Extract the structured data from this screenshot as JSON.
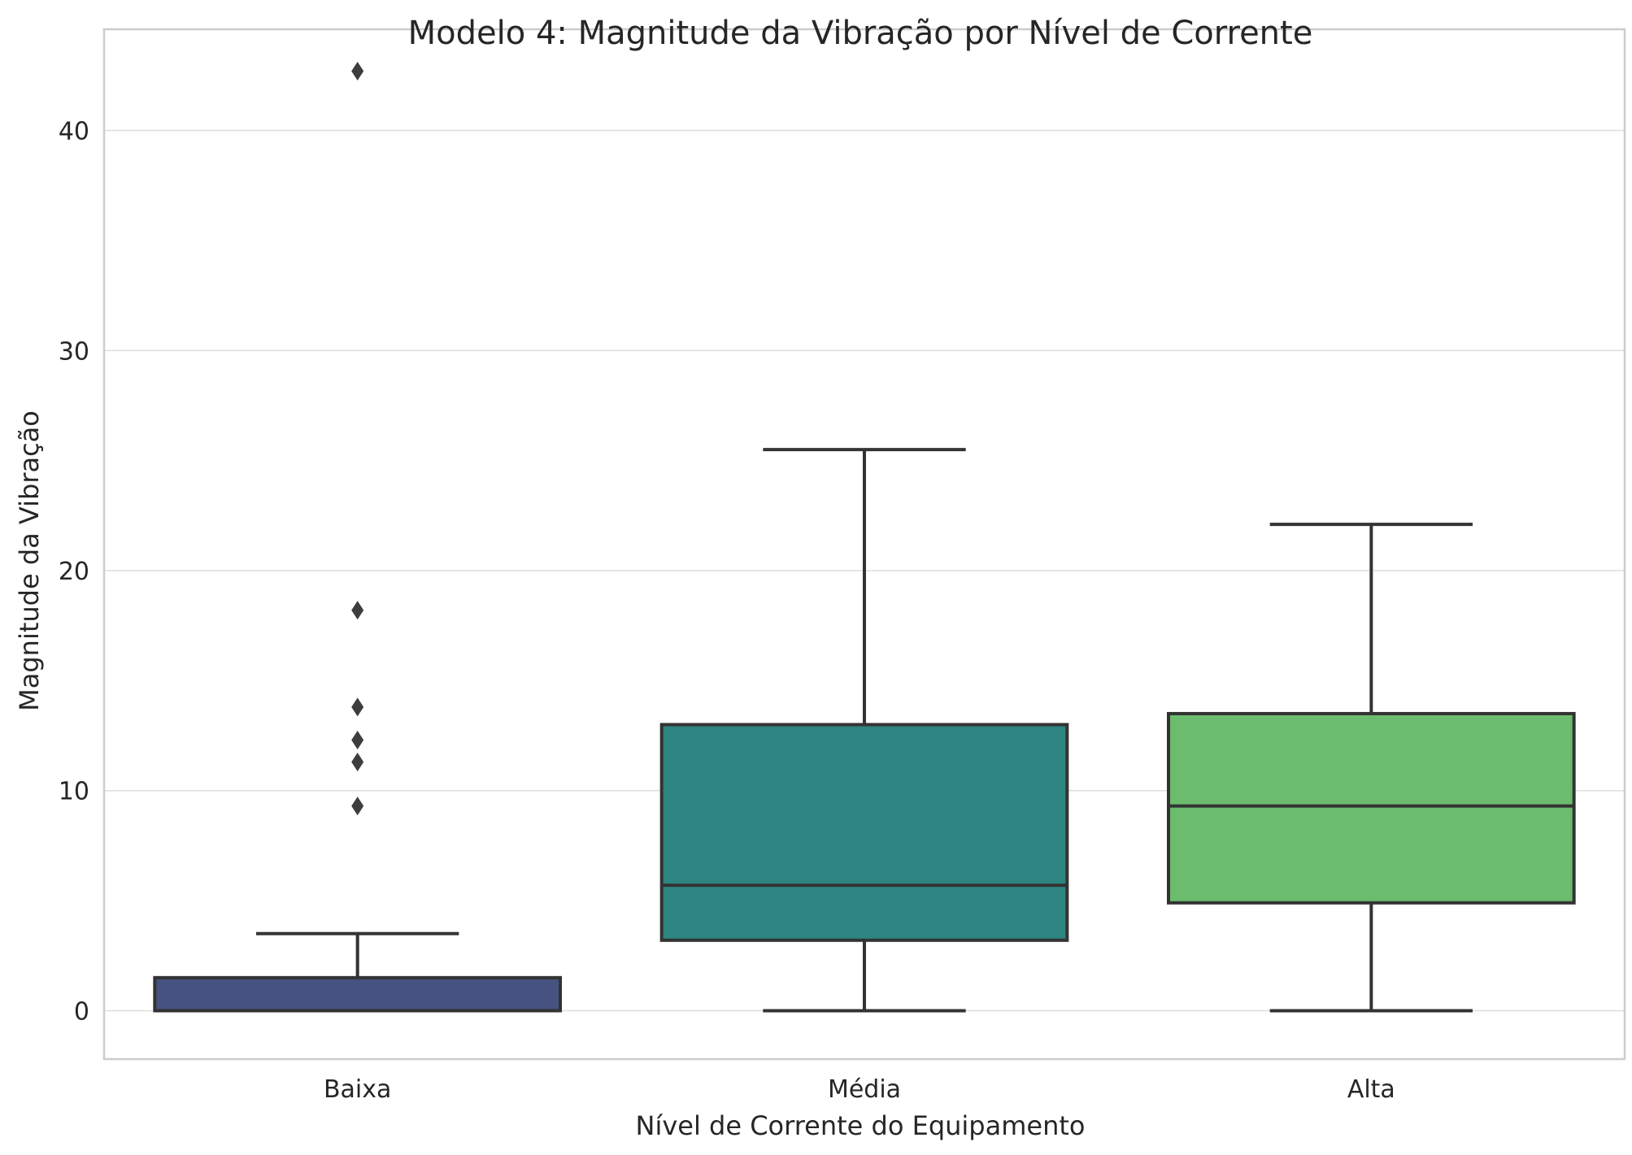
{
  "chart_data": {
    "type": "box",
    "title": "Modelo 4: Magnitude da Vibração por Nível de Corrente",
    "xlabel": "Nível de Corrente do Equipamento",
    "ylabel": "Magnitude da Vibração",
    "ylim": [
      -2.2,
      44.6
    ],
    "yticks": [
      0,
      10,
      20,
      30,
      40
    ],
    "grid": "horizontal",
    "categories": [
      "Baixa",
      "Média",
      "Alta"
    ],
    "boxes": [
      {
        "category": "Baixa",
        "color": "#46527f",
        "whisker_low": 0,
        "q1": 0,
        "median": 0,
        "q3": 1.5,
        "whisker_high": 3.5,
        "outliers": [
          9.3,
          11.3,
          12.3,
          13.8,
          18.2,
          42.7
        ]
      },
      {
        "category": "Média",
        "color": "#2e8581",
        "whisker_low": 0,
        "q1": 3.2,
        "median": 5.7,
        "q3": 13.0,
        "whisker_high": 25.5,
        "outliers": []
      },
      {
        "category": "Alta",
        "color": "#6bbc6d",
        "whisker_low": 0,
        "q1": 4.9,
        "median": 9.3,
        "q3": 13.5,
        "whisker_high": 22.1,
        "outliers": []
      }
    ]
  }
}
